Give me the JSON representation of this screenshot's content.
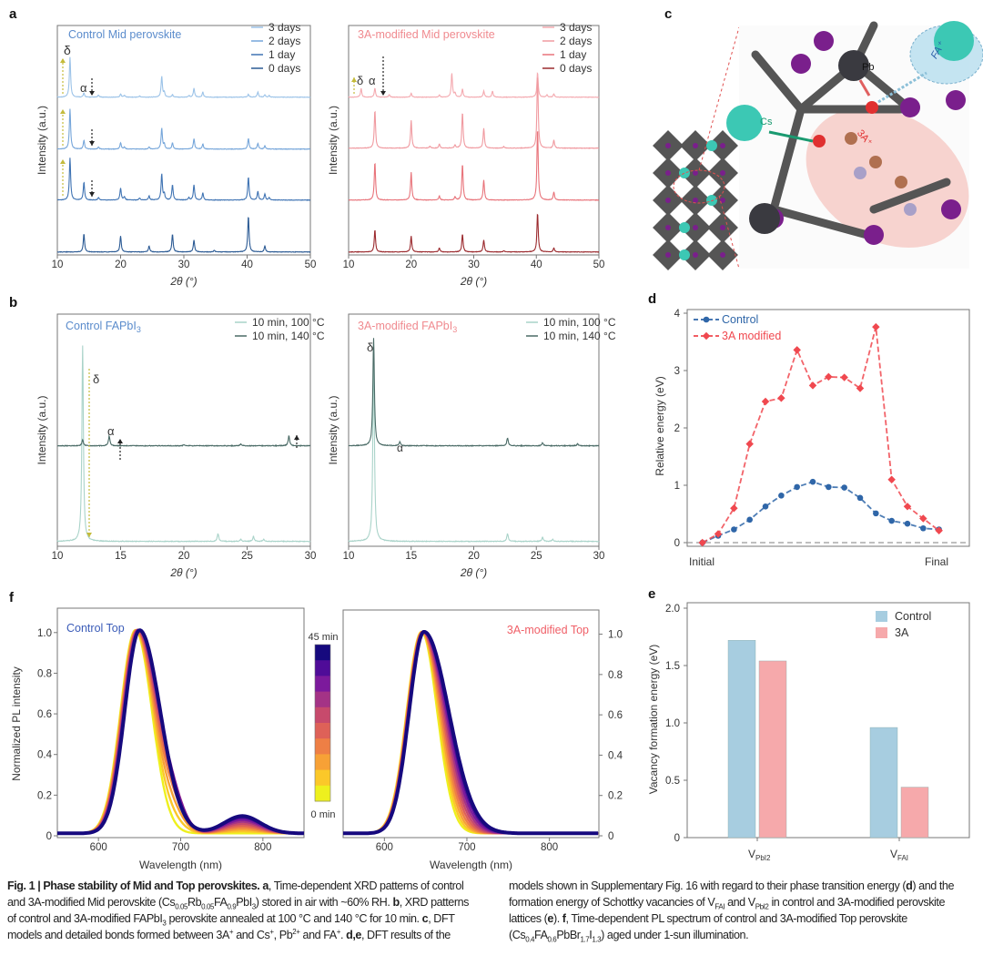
{
  "panel_labels": {
    "a": "a",
    "b": "b",
    "c": "c",
    "d": "d",
    "e": "e",
    "f": "f"
  },
  "panel_c": {
    "type": "molecular-model-image",
    "labels": {
      "pb": "Pb",
      "cs": "Cs",
      "a3": "3A⁺",
      "fa": "FA⁺"
    },
    "colors": {
      "pb": "#3a3a40",
      "i": "#7a1f8c",
      "cs": "#3cc8b4",
      "a3_region": "#f6c9c4",
      "fa_region": "#bfe2f0"
    }
  },
  "chart_data": [
    {
      "id": "a_control",
      "type": "line",
      "title": "Control Mid perovskite",
      "title_color": "#5b8ccc",
      "xlabel": "2θ (°)",
      "ylabel": "Intensity (a.u.)",
      "xlim": [
        10,
        50
      ],
      "xticks": [
        "10",
        "20",
        "30",
        "40",
        "50"
      ],
      "annotations": {
        "delta": "δ",
        "alpha": "α"
      },
      "series": [
        {
          "name": "3 days",
          "color": "#9cc3e8",
          "peaks": [
            [
              12,
              1.0
            ],
            [
              14.2,
              0.1
            ],
            [
              16.5,
              0.05
            ],
            [
              20,
              0.08
            ],
            [
              20.6,
              0.05
            ],
            [
              23,
              0.03
            ],
            [
              26.5,
              0.52
            ],
            [
              26.9,
              0.12
            ],
            [
              28.2,
              0.06
            ],
            [
              30.8,
              0.04
            ],
            [
              31.6,
              0.22
            ],
            [
              33,
              0.13
            ],
            [
              40.2,
              0.07
            ],
            [
              41.7,
              0.13
            ],
            [
              42.8,
              0.06
            ],
            [
              43.5,
              0.04
            ]
          ]
        },
        {
          "name": "2 days",
          "color": "#76a6da",
          "peaks": [
            [
              12,
              1.0
            ],
            [
              14.2,
              0.22
            ],
            [
              16.5,
              0.05
            ],
            [
              20,
              0.16
            ],
            [
              20.6,
              0.05
            ],
            [
              24.5,
              0.05
            ],
            [
              26.5,
              0.52
            ],
            [
              26.9,
              0.12
            ],
            [
              28.2,
              0.16
            ],
            [
              31.6,
              0.26
            ],
            [
              33,
              0.13
            ],
            [
              40.2,
              0.27
            ],
            [
              41.7,
              0.14
            ],
            [
              42.8,
              0.08
            ]
          ]
        },
        {
          "name": "1 day",
          "color": "#3f73b3",
          "peaks": [
            [
              12,
              1.05
            ],
            [
              14.2,
              0.45
            ],
            [
              16.5,
              0.06
            ],
            [
              20,
              0.3
            ],
            [
              20.6,
              0.08
            ],
            [
              23,
              0.05
            ],
            [
              24.5,
              0.1
            ],
            [
              26.5,
              0.65
            ],
            [
              26.9,
              0.15
            ],
            [
              28.2,
              0.38
            ],
            [
              30.8,
              0.06
            ],
            [
              31.6,
              0.38
            ],
            [
              33,
              0.18
            ],
            [
              40.2,
              0.58
            ],
            [
              41.7,
              0.22
            ],
            [
              42.8,
              0.15
            ],
            [
              43.5,
              0.06
            ]
          ]
        },
        {
          "name": "0 days",
          "color": "#2b5a94",
          "peaks": [
            [
              14.2,
              0.45
            ],
            [
              20,
              0.4
            ],
            [
              24.5,
              0.15
            ],
            [
              28.2,
              0.45
            ],
            [
              31.6,
              0.3
            ],
            [
              34.8,
              0.04
            ],
            [
              40.2,
              0.9
            ],
            [
              42.8,
              0.15
            ]
          ]
        }
      ]
    },
    {
      "id": "a_3A",
      "type": "line",
      "title": "3A-modified Mid perovskite",
      "title_color": "#f08a8f",
      "xlabel": "2θ (°)",
      "ylabel": "Intensity (a.u.)",
      "xlim": [
        10,
        50
      ],
      "xticks": [
        "10",
        "20",
        "30",
        "40",
        "50"
      ],
      "annotations": {
        "delta": "δ",
        "alpha": "α"
      },
      "series": [
        {
          "name": "3 days",
          "color": "#f4aab0",
          "peaks": [
            [
              12,
              0.22
            ],
            [
              14.2,
              0.22
            ],
            [
              16.5,
              0.06
            ],
            [
              20,
              0.1
            ],
            [
              24.5,
              0.05
            ],
            [
              26.5,
              0.6
            ],
            [
              27,
              0.1
            ],
            [
              28.2,
              0.2
            ],
            [
              31.6,
              0.15
            ],
            [
              33,
              0.15
            ],
            [
              40.2,
              0.62
            ],
            [
              41.7,
              0.06
            ],
            [
              42.8,
              0.08
            ]
          ]
        },
        {
          "name": "2 days",
          "color": "#f09aa0",
          "peaks": [
            [
              14.2,
              0.95
            ],
            [
              20,
              0.7
            ],
            [
              23,
              0.05
            ],
            [
              24.5,
              0.1
            ],
            [
              27,
              0.08
            ],
            [
              28.2,
              0.9
            ],
            [
              31.6,
              0.5
            ],
            [
              34.8,
              0.04
            ],
            [
              40.2,
              1.85
            ],
            [
              42.8,
              0.2
            ]
          ]
        },
        {
          "name": "1 day",
          "color": "#e8737a",
          "peaks": [
            [
              14.2,
              0.95
            ],
            [
              20,
              0.7
            ],
            [
              24.5,
              0.1
            ],
            [
              27,
              0.08
            ],
            [
              28.2,
              0.9
            ],
            [
              31.6,
              0.5
            ],
            [
              40.2,
              1.8
            ],
            [
              42.8,
              0.2
            ]
          ]
        },
        {
          "name": "0 days",
          "color": "#9b2a2e",
          "peaks": [
            [
              14.2,
              0.55
            ],
            [
              20,
              0.4
            ],
            [
              24.5,
              0.1
            ],
            [
              28.2,
              0.45
            ],
            [
              31.6,
              0.3
            ],
            [
              34.8,
              0.03
            ],
            [
              40.2,
              0.98
            ],
            [
              42.8,
              0.1
            ]
          ]
        }
      ]
    },
    {
      "id": "b_control",
      "type": "line",
      "title": "Control FAPbI",
      "title_sub": "3",
      "title_color": "#5b8ccc",
      "xlabel": "2θ (°)",
      "ylabel": "Intensity (a.u.)",
      "xlim": [
        10,
        30
      ],
      "xticks": [
        "10",
        "15",
        "20",
        "25",
        "30"
      ],
      "annotations": {
        "delta": "δ",
        "alpha": "α"
      },
      "series": [
        {
          "name": "10 min, 100 °C",
          "color": "#a9d3c9",
          "peaks": [
            [
              12,
              1.0
            ],
            [
              22.7,
              0.04
            ],
            [
              24.5,
              0.01
            ],
            [
              25.5,
              0.025
            ],
            [
              26.3,
              0.01
            ]
          ]
        },
        {
          "name": "10 min, 140 °C",
          "color": "#4a6b66",
          "peaks": [
            [
              12,
              0.03
            ],
            [
              14.1,
              0.05
            ],
            [
              20,
              0.005
            ],
            [
              24.5,
              0.01
            ],
            [
              28.3,
              0.05
            ]
          ]
        }
      ]
    },
    {
      "id": "b_3A",
      "type": "line",
      "title": "3A-modified FAPbI",
      "title_sub": "3",
      "title_color": "#f08a8f",
      "xlabel": "2θ (°)",
      "ylabel": "Intensity (a.u.)",
      "xlim": [
        10,
        30
      ],
      "xticks": [
        "10",
        "15",
        "20",
        "25",
        "30"
      ],
      "annotations": {
        "delta": "δ",
        "alpha": "α"
      },
      "series": [
        {
          "name": "10 min, 100 °C",
          "color": "#a9d3c9",
          "peaks": [
            [
              12,
              1.0
            ],
            [
              22.7,
              0.04
            ],
            [
              25.5,
              0.02
            ],
            [
              26.3,
              0.01
            ]
          ]
        },
        {
          "name": "10 min, 140 °C",
          "color": "#4a6b66",
          "peaks": [
            [
              12,
              0.55
            ],
            [
              14.1,
              0.02
            ],
            [
              22.7,
              0.04
            ],
            [
              25.5,
              0.015
            ],
            [
              28.3,
              0.01
            ]
          ]
        }
      ]
    },
    {
      "id": "d",
      "type": "line",
      "ylabel": "Relative energy (eV)",
      "ylim": [
        0,
        4
      ],
      "yticks": [
        "0",
        "1",
        "2",
        "3",
        "4"
      ],
      "xticks": {
        "start": "Initial",
        "end": "Final"
      },
      "series": [
        {
          "name": "Control",
          "color": "#2f66a8",
          "marker": "circle",
          "values": [
            0,
            0.12,
            0.23,
            0.4,
            0.63,
            0.82,
            0.97,
            1.06,
            0.97,
            0.96,
            0.78,
            0.51,
            0.38,
            0.33,
            0.25,
            0.23
          ]
        },
        {
          "name": "3A modified",
          "color": "#f0484f",
          "marker": "diamond",
          "values": [
            0,
            0.15,
            0.6,
            1.72,
            2.46,
            2.52,
            3.36,
            2.74,
            2.89,
            2.88,
            2.69,
            3.76,
            1.1,
            0.63,
            0.42,
            0.21
          ]
        }
      ]
    },
    {
      "id": "e",
      "type": "bar",
      "ylabel": "Vacancy formation energy (eV)",
      "ylim": [
        0,
        2
      ],
      "yticks": [
        "0",
        "0.5",
        "1.0",
        "1.5",
        "2.0"
      ],
      "categories": [
        {
          "main": "V",
          "sub": "PbI2"
        },
        {
          "main": "V",
          "sub": "FAI"
        }
      ],
      "series": [
        {
          "name": "Control",
          "color": "#a7cde0",
          "values": [
            1.72,
            0.96
          ]
        },
        {
          "name": "3A",
          "color": "#f6a9ab",
          "values": [
            1.54,
            0.44
          ]
        }
      ]
    },
    {
      "id": "f_control",
      "type": "line",
      "title": "Control Top",
      "title_color": "#3b5cb8",
      "xlabel": "Wavelength (nm)",
      "ylabel": "Normalized PL intensity",
      "xlim": [
        550,
        850
      ],
      "ylim": [
        0,
        1.12
      ],
      "xticks": [
        "600",
        "700",
        "800"
      ],
      "yticks": [
        "0",
        "0.2",
        "0.4",
        "0.6",
        "0.8",
        "1.0"
      ],
      "colorbar": {
        "top_label": "45 min",
        "bottom_label": "0 min",
        "time_range_min": [
          0,
          45
        ],
        "colors": [
          "#eef01e",
          "#fbc829",
          "#f7a136",
          "#ee7f45",
          "#de6158",
          "#c74a6c",
          "#a43386",
          "#7c1a9c",
          "#4f0c98",
          "#16097e"
        ]
      },
      "peak_center_nm": [
        645,
        650
      ],
      "satellite_peak_nm": 775,
      "satellite_max_intensity": 0.085
    },
    {
      "id": "f_3A",
      "type": "line",
      "title": "3A-modified Top",
      "title_color": "#f06068",
      "xlabel": "Wavelength (nm)",
      "xlim": [
        550,
        860
      ],
      "ylim": [
        0,
        1.12
      ],
      "xticks": [
        "600",
        "700",
        "800"
      ],
      "yticks": [
        "0",
        "0.2",
        "0.4",
        "0.6",
        "0.8",
        "1.0"
      ],
      "peak_center_nm": [
        645,
        648
      ]
    }
  ],
  "caption": [
    {
      "t": "Fig. 1 | Phase stability of Mid and Top perovskites. a",
      "s": "b"
    },
    {
      "t": ", Time-dependent XRD patterns of control and 3A-modified Mid perovskite (Cs"
    },
    {
      "t": "0.05",
      "s": "sub"
    },
    {
      "t": "Rb"
    },
    {
      "t": "0.05",
      "s": "sub"
    },
    {
      "t": "FA"
    },
    {
      "t": "0.9",
      "s": "sub"
    },
    {
      "t": "PbI"
    },
    {
      "t": "3",
      "s": "sub"
    },
    {
      "t": ") stored in air with ~60% RH. "
    },
    {
      "t": "b",
      "s": "b"
    },
    {
      "t": ", XRD patterns of control and 3A-modified FAPbI"
    },
    {
      "t": "3",
      "s": "sub"
    },
    {
      "t": " perovskite annealed at 100 °C and 140 °C for 10 min. "
    },
    {
      "t": "c",
      "s": "b"
    },
    {
      "t": ", DFT models and detailed bonds formed between 3A"
    },
    {
      "t": "+",
      "s": "sup"
    },
    {
      "t": " and Cs"
    },
    {
      "t": "+",
      "s": "sup"
    },
    {
      "t": ", Pb"
    },
    {
      "t": "2+",
      "s": "sup"
    },
    {
      "t": " and FA"
    },
    {
      "t": "+",
      "s": "sup"
    },
    {
      "t": ". "
    },
    {
      "t": "d,e",
      "s": "b"
    },
    {
      "t": ", DFT results of the models shown in Supplementary Fig. 16 with regard to their phase transition energy ("
    },
    {
      "t": "d",
      "s": "b"
    },
    {
      "t": ") and the formation energy of Schottky vacancies of V"
    },
    {
      "t": "FAI",
      "s": "sub"
    },
    {
      "t": " and V"
    },
    {
      "t": "PbI2",
      "s": "sub"
    },
    {
      "t": " in control and 3A-modified perovskite lattices ("
    },
    {
      "t": "e",
      "s": "b"
    },
    {
      "t": "). "
    },
    {
      "t": "f",
      "s": "b"
    },
    {
      "t": ", Time-dependent PL spectrum of control and 3A-modified Top perovskite (Cs"
    },
    {
      "t": "0.4",
      "s": "sub"
    },
    {
      "t": "FA"
    },
    {
      "t": "0.6",
      "s": "sub"
    },
    {
      "t": "PbBr"
    },
    {
      "t": "1.7",
      "s": "sub"
    },
    {
      "t": "I"
    },
    {
      "t": "1.3",
      "s": "sub"
    },
    {
      "t": ") aged under 1-sun illumination."
    }
  ]
}
